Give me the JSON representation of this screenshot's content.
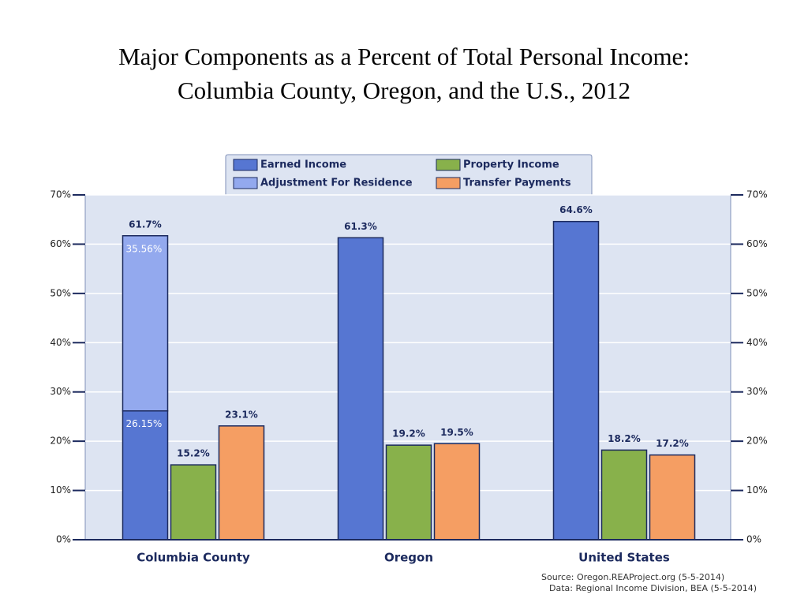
{
  "chart_data": {
    "type": "bar",
    "title": [
      "Major Components as a Percent of Total Personal Income:",
      "Columbia County, Oregon, and the U.S., 2012"
    ],
    "categories": [
      "Columbia County",
      "Oregon",
      "United States"
    ],
    "series": [
      {
        "name": "Earned Income",
        "color": "#5676d2",
        "values": [
          26.15,
          61.3,
          64.6
        ],
        "value_labels": [
          "26.15%",
          "61.3%",
          "64.6%"
        ]
      },
      {
        "name": "Adjustment For Residence",
        "color": "#93a9ee",
        "values": [
          35.56,
          null,
          null
        ],
        "value_labels": [
          "35.56%",
          null,
          null
        ]
      },
      {
        "name": "Property Income",
        "color": "#88b14b",
        "values": [
          15.2,
          19.2,
          18.2
        ],
        "value_labels": [
          "15.2%",
          "19.2%",
          "18.2%"
        ]
      },
      {
        "name": "Transfer Payments",
        "color": "#f59e63",
        "values": [
          23.1,
          19.5,
          17.2
        ],
        "value_labels": [
          "23.1%",
          "19.5%",
          "17.2%"
        ]
      }
    ],
    "totals": [
      61.7,
      null,
      null
    ],
    "total_labels": [
      "61.7%",
      null,
      null
    ],
    "ylim": [
      0,
      70
    ],
    "yticks": [
      {
        "value": 0,
        "label": "0%"
      },
      {
        "value": 10,
        "label": "10%"
      },
      {
        "value": 20,
        "label": "20%"
      },
      {
        "value": 30,
        "label": "30%"
      },
      {
        "value": 40,
        "label": "40%"
      },
      {
        "value": 50,
        "label": "50%"
      },
      {
        "value": 60,
        "label": "60%"
      },
      {
        "value": 70,
        "label": "70%"
      }
    ],
    "grid": true,
    "source": [
      "Source: Oregon.REAProject.org (5-5-2014)",
      "Data: Regional Income Division, BEA (5-5-2014)"
    ]
  }
}
